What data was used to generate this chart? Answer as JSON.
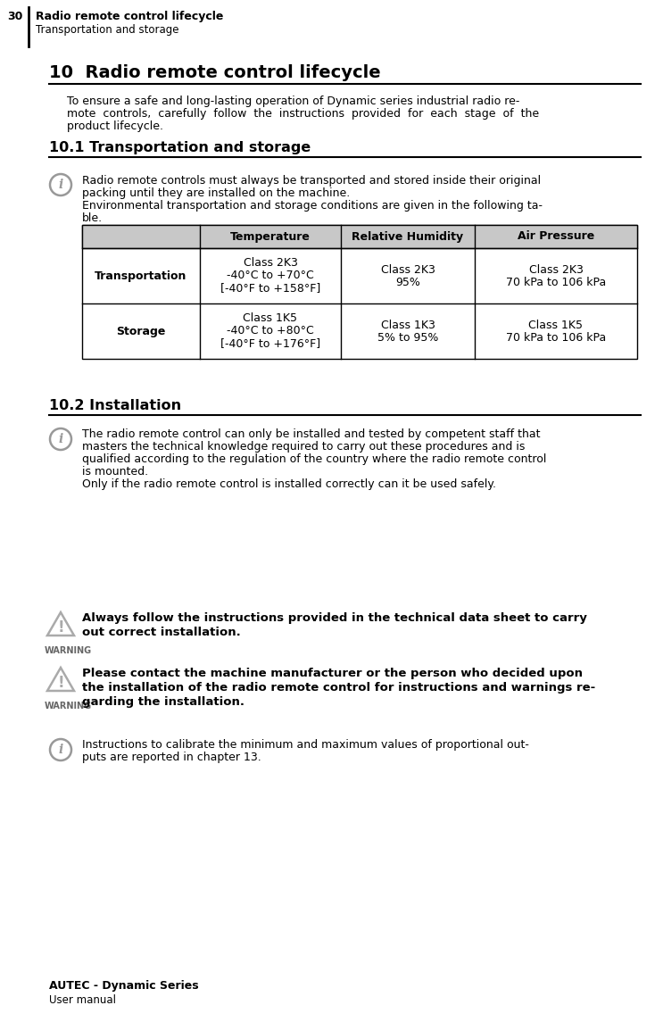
{
  "page_num": "30",
  "header_bold": "Radio remote control lifecycle",
  "header_sub": "Transportation and storage",
  "section10_title": "10  Radio remote control lifecycle",
  "section10_body_lines": [
    "To ensure a safe and long-lasting operation of Dynamic series industrial radio re-",
    "mote  controls,  carefully  follow  the  instructions  provided  for  each  stage  of  the",
    "product lifecycle."
  ],
  "section101_title": "10.1 Transportation and storage",
  "section101_info_lines": [
    "Radio remote controls must always be transported and stored inside their original",
    "packing until they are installed on the machine.",
    "Environmental transportation and storage conditions are given in the following ta-",
    "ble."
  ],
  "table_headers": [
    "",
    "Temperature",
    "Relative Humidity",
    "Air Pressure"
  ],
  "table_row1_label": "Transportation",
  "table_row1_temp_lines": [
    "Class 2K3",
    "-40°C to +70°C",
    "[-40°F to +158°F]"
  ],
  "table_row1_hum_lines": [
    "Class 2K3",
    "95%"
  ],
  "table_row1_pres_lines": [
    "Class 2K3",
    "70 kPa to 106 kPa"
  ],
  "table_row2_label": "Storage",
  "table_row2_temp_lines": [
    "Class 1K5",
    "-40°C to +80°C",
    "[-40°F to +176°F]"
  ],
  "table_row2_hum_lines": [
    "Class 1K3",
    "5% to 95%"
  ],
  "table_row2_pres_lines": [
    "Class 1K5",
    "70 kPa to 106 kPa"
  ],
  "section102_title": "10.2 Installation",
  "section102_info_lines": [
    "The radio remote control can only be installed and tested by competent staff that",
    "masters the technical knowledge required to carry out these procedures and is",
    "qualified according to the regulation of the country where the radio remote control",
    "is mounted.",
    "Only if the radio remote control is installed correctly can it be used safely."
  ],
  "warning1_lines": [
    "Always follow the instructions provided in the technical data sheet to carry",
    "out correct installation."
  ],
  "warning2_lines": [
    "Please contact the machine manufacturer or the person who decided upon",
    "the installation of the radio remote control for instructions and warnings re-",
    "garding the installation."
  ],
  "info2_lines": [
    "Instructions to calibrate the minimum and maximum values of proportional out-",
    "puts are reported in chapter 13."
  ],
  "footer_bold": "AUTEC - Dynamic Series",
  "footer_sub": "User manual",
  "bg_color": "#ffffff",
  "text_color": "#000000"
}
